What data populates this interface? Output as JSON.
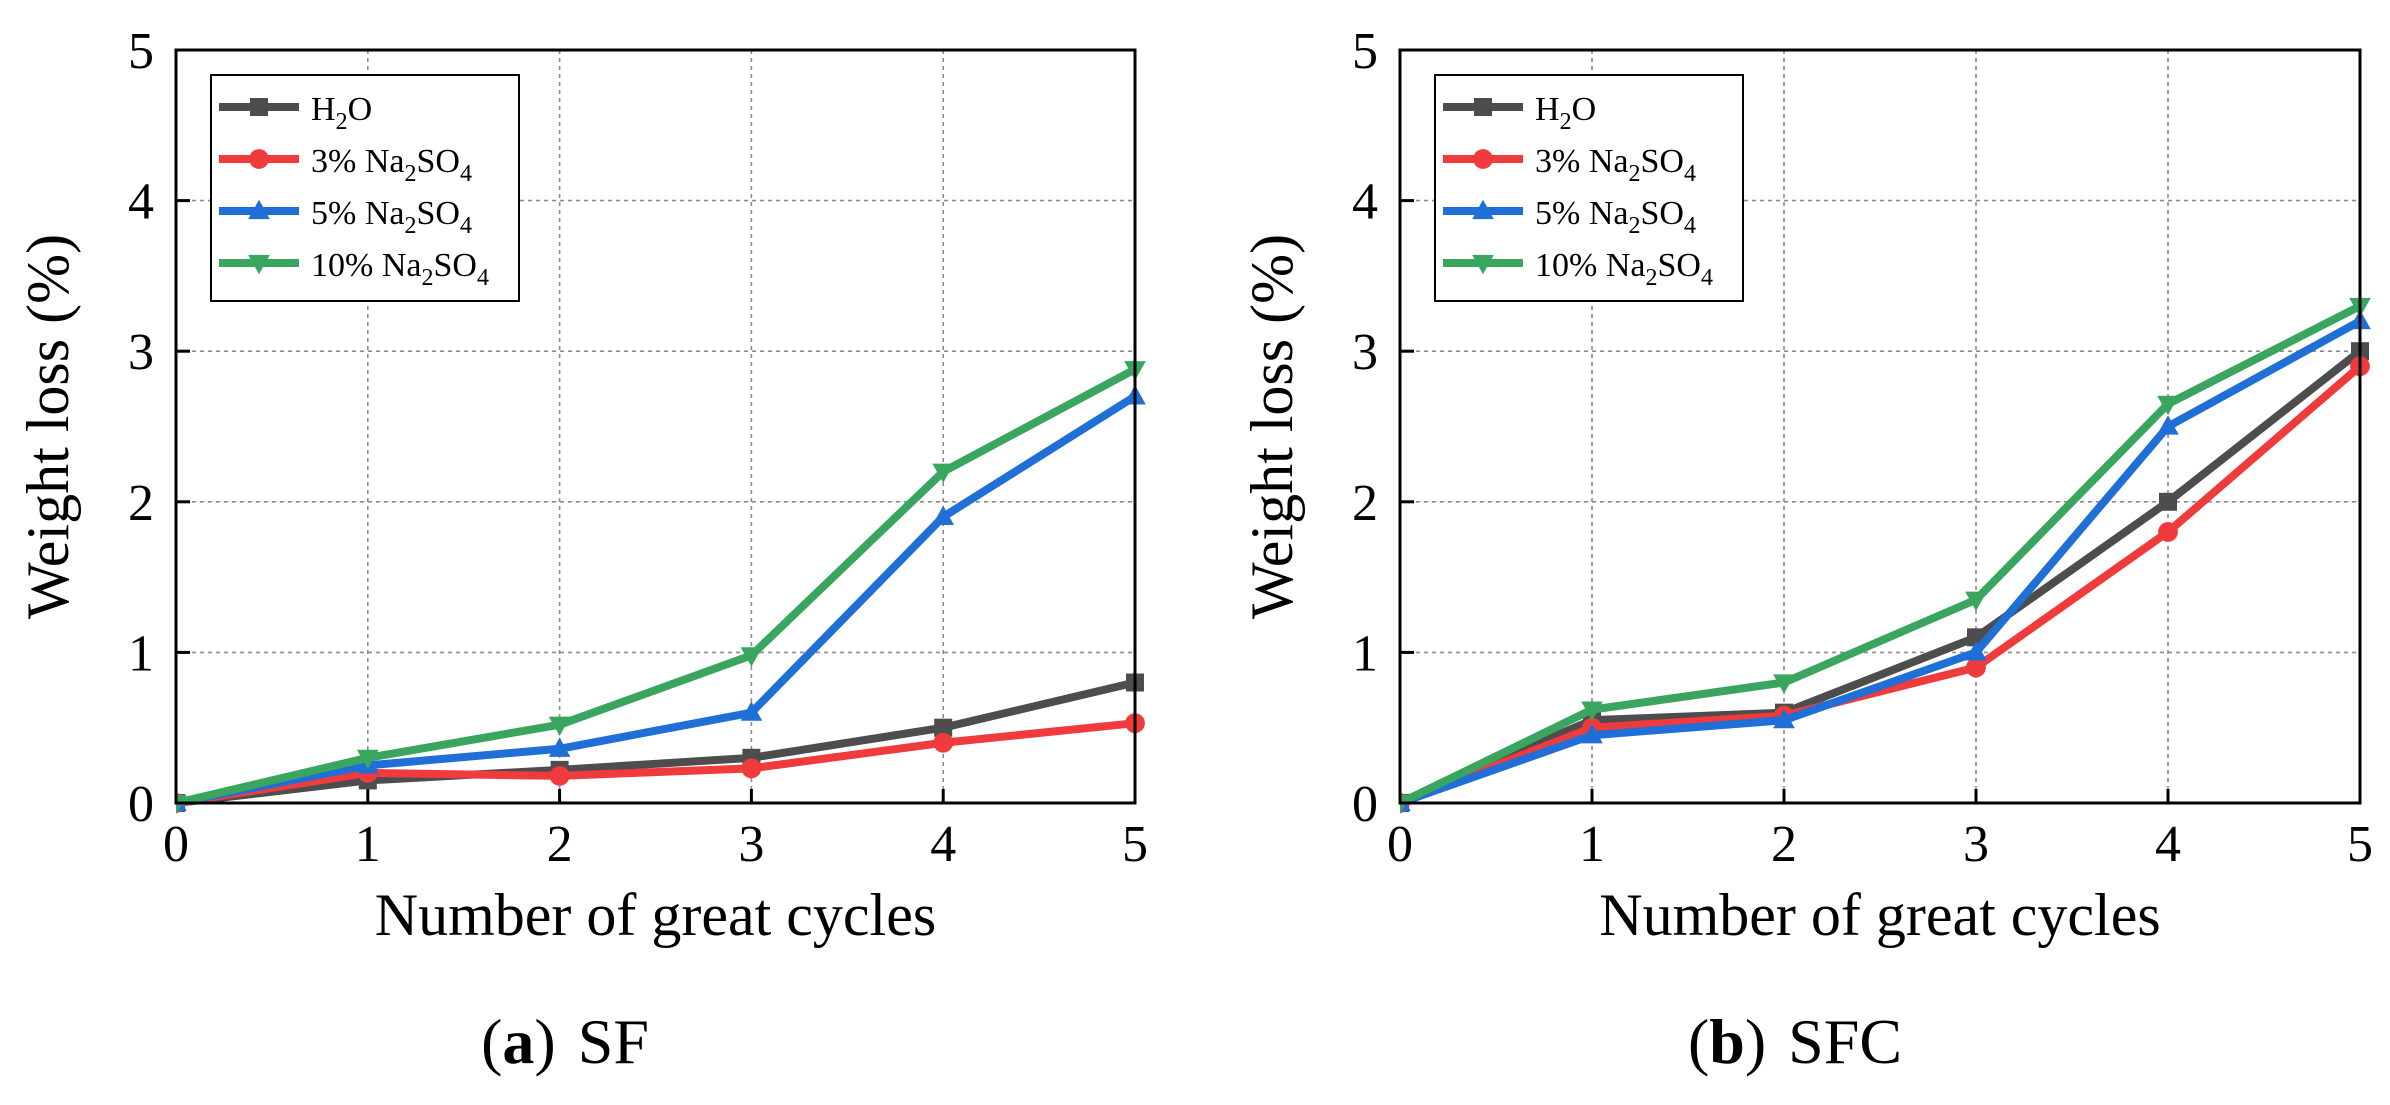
{
  "chart_data": [
    {
      "type": "line",
      "panel_label": "a",
      "title": "SF",
      "xlabel": "Number of great cycles",
      "ylabel": "Weight loss (%)",
      "xlim": [
        0,
        5
      ],
      "ylim": [
        0,
        5
      ],
      "xticks": [
        "0",
        "1",
        "2",
        "3",
        "4",
        "5"
      ],
      "yticks": [
        "0",
        "1",
        "2",
        "3",
        "4",
        "5"
      ],
      "grid": true,
      "legend_position": "top-left",
      "x": [
        0,
        1,
        2,
        3,
        4,
        5
      ],
      "series": [
        {
          "name": "H2O",
          "label_parts": [
            "H",
            "2",
            "O"
          ],
          "color": "#4d4d4d",
          "marker": "square",
          "values": [
            0,
            0.15,
            0.22,
            0.3,
            0.5,
            0.8
          ]
        },
        {
          "name": "3% Na2SO4",
          "label_parts": [
            "3% Na",
            "2",
            "SO",
            "4"
          ],
          "color": "#ef3b3b",
          "marker": "circle",
          "values": [
            0,
            0.2,
            0.18,
            0.23,
            0.4,
            0.53
          ]
        },
        {
          "name": "5% Na2SO4",
          "label_parts": [
            "5% Na",
            "2",
            "SO",
            "4"
          ],
          "color": "#1f6fd6",
          "marker": "triangle-up",
          "values": [
            0,
            0.25,
            0.36,
            0.6,
            1.9,
            2.7
          ]
        },
        {
          "name": "10% Na2SO4",
          "label_parts": [
            "10% Na",
            "2",
            "SO",
            "4"
          ],
          "color": "#3aa55f",
          "marker": "triangle-down",
          "values": [
            0,
            0.3,
            0.52,
            0.98,
            2.2,
            2.88
          ]
        }
      ]
    },
    {
      "type": "line",
      "panel_label": "b",
      "title": "SFC",
      "xlabel": "Number of great cycles",
      "ylabel": "Weight loss (%)",
      "xlim": [
        0,
        5
      ],
      "ylim": [
        0,
        5
      ],
      "xticks": [
        "0",
        "1",
        "2",
        "3",
        "4",
        "5"
      ],
      "yticks": [
        "0",
        "1",
        "2",
        "3",
        "4",
        "5"
      ],
      "grid": true,
      "legend_position": "top-left",
      "x": [
        0,
        1,
        2,
        3,
        4,
        5
      ],
      "series": [
        {
          "name": "H2O",
          "label_parts": [
            "H",
            "2",
            "O"
          ],
          "color": "#4d4d4d",
          "marker": "square",
          "values": [
            0,
            0.55,
            0.6,
            1.1,
            2.0,
            3.0
          ]
        },
        {
          "name": "3% Na2SO4",
          "label_parts": [
            "3% Na",
            "2",
            "SO",
            "4"
          ],
          "color": "#ef3b3b",
          "marker": "circle",
          "values": [
            0,
            0.5,
            0.58,
            0.9,
            1.8,
            2.9
          ]
        },
        {
          "name": "5% Na2SO4",
          "label_parts": [
            "5% Na",
            "2",
            "SO",
            "4"
          ],
          "color": "#1f6fd6",
          "marker": "triangle-up",
          "values": [
            0,
            0.45,
            0.55,
            1.0,
            2.5,
            3.2
          ]
        },
        {
          "name": "10% Na2SO4",
          "label_parts": [
            "10% Na",
            "2",
            "SO",
            "4"
          ],
          "color": "#3aa55f",
          "marker": "triangle-down",
          "values": [
            0,
            0.62,
            0.8,
            1.35,
            2.65,
            3.3
          ]
        }
      ]
    }
  ]
}
